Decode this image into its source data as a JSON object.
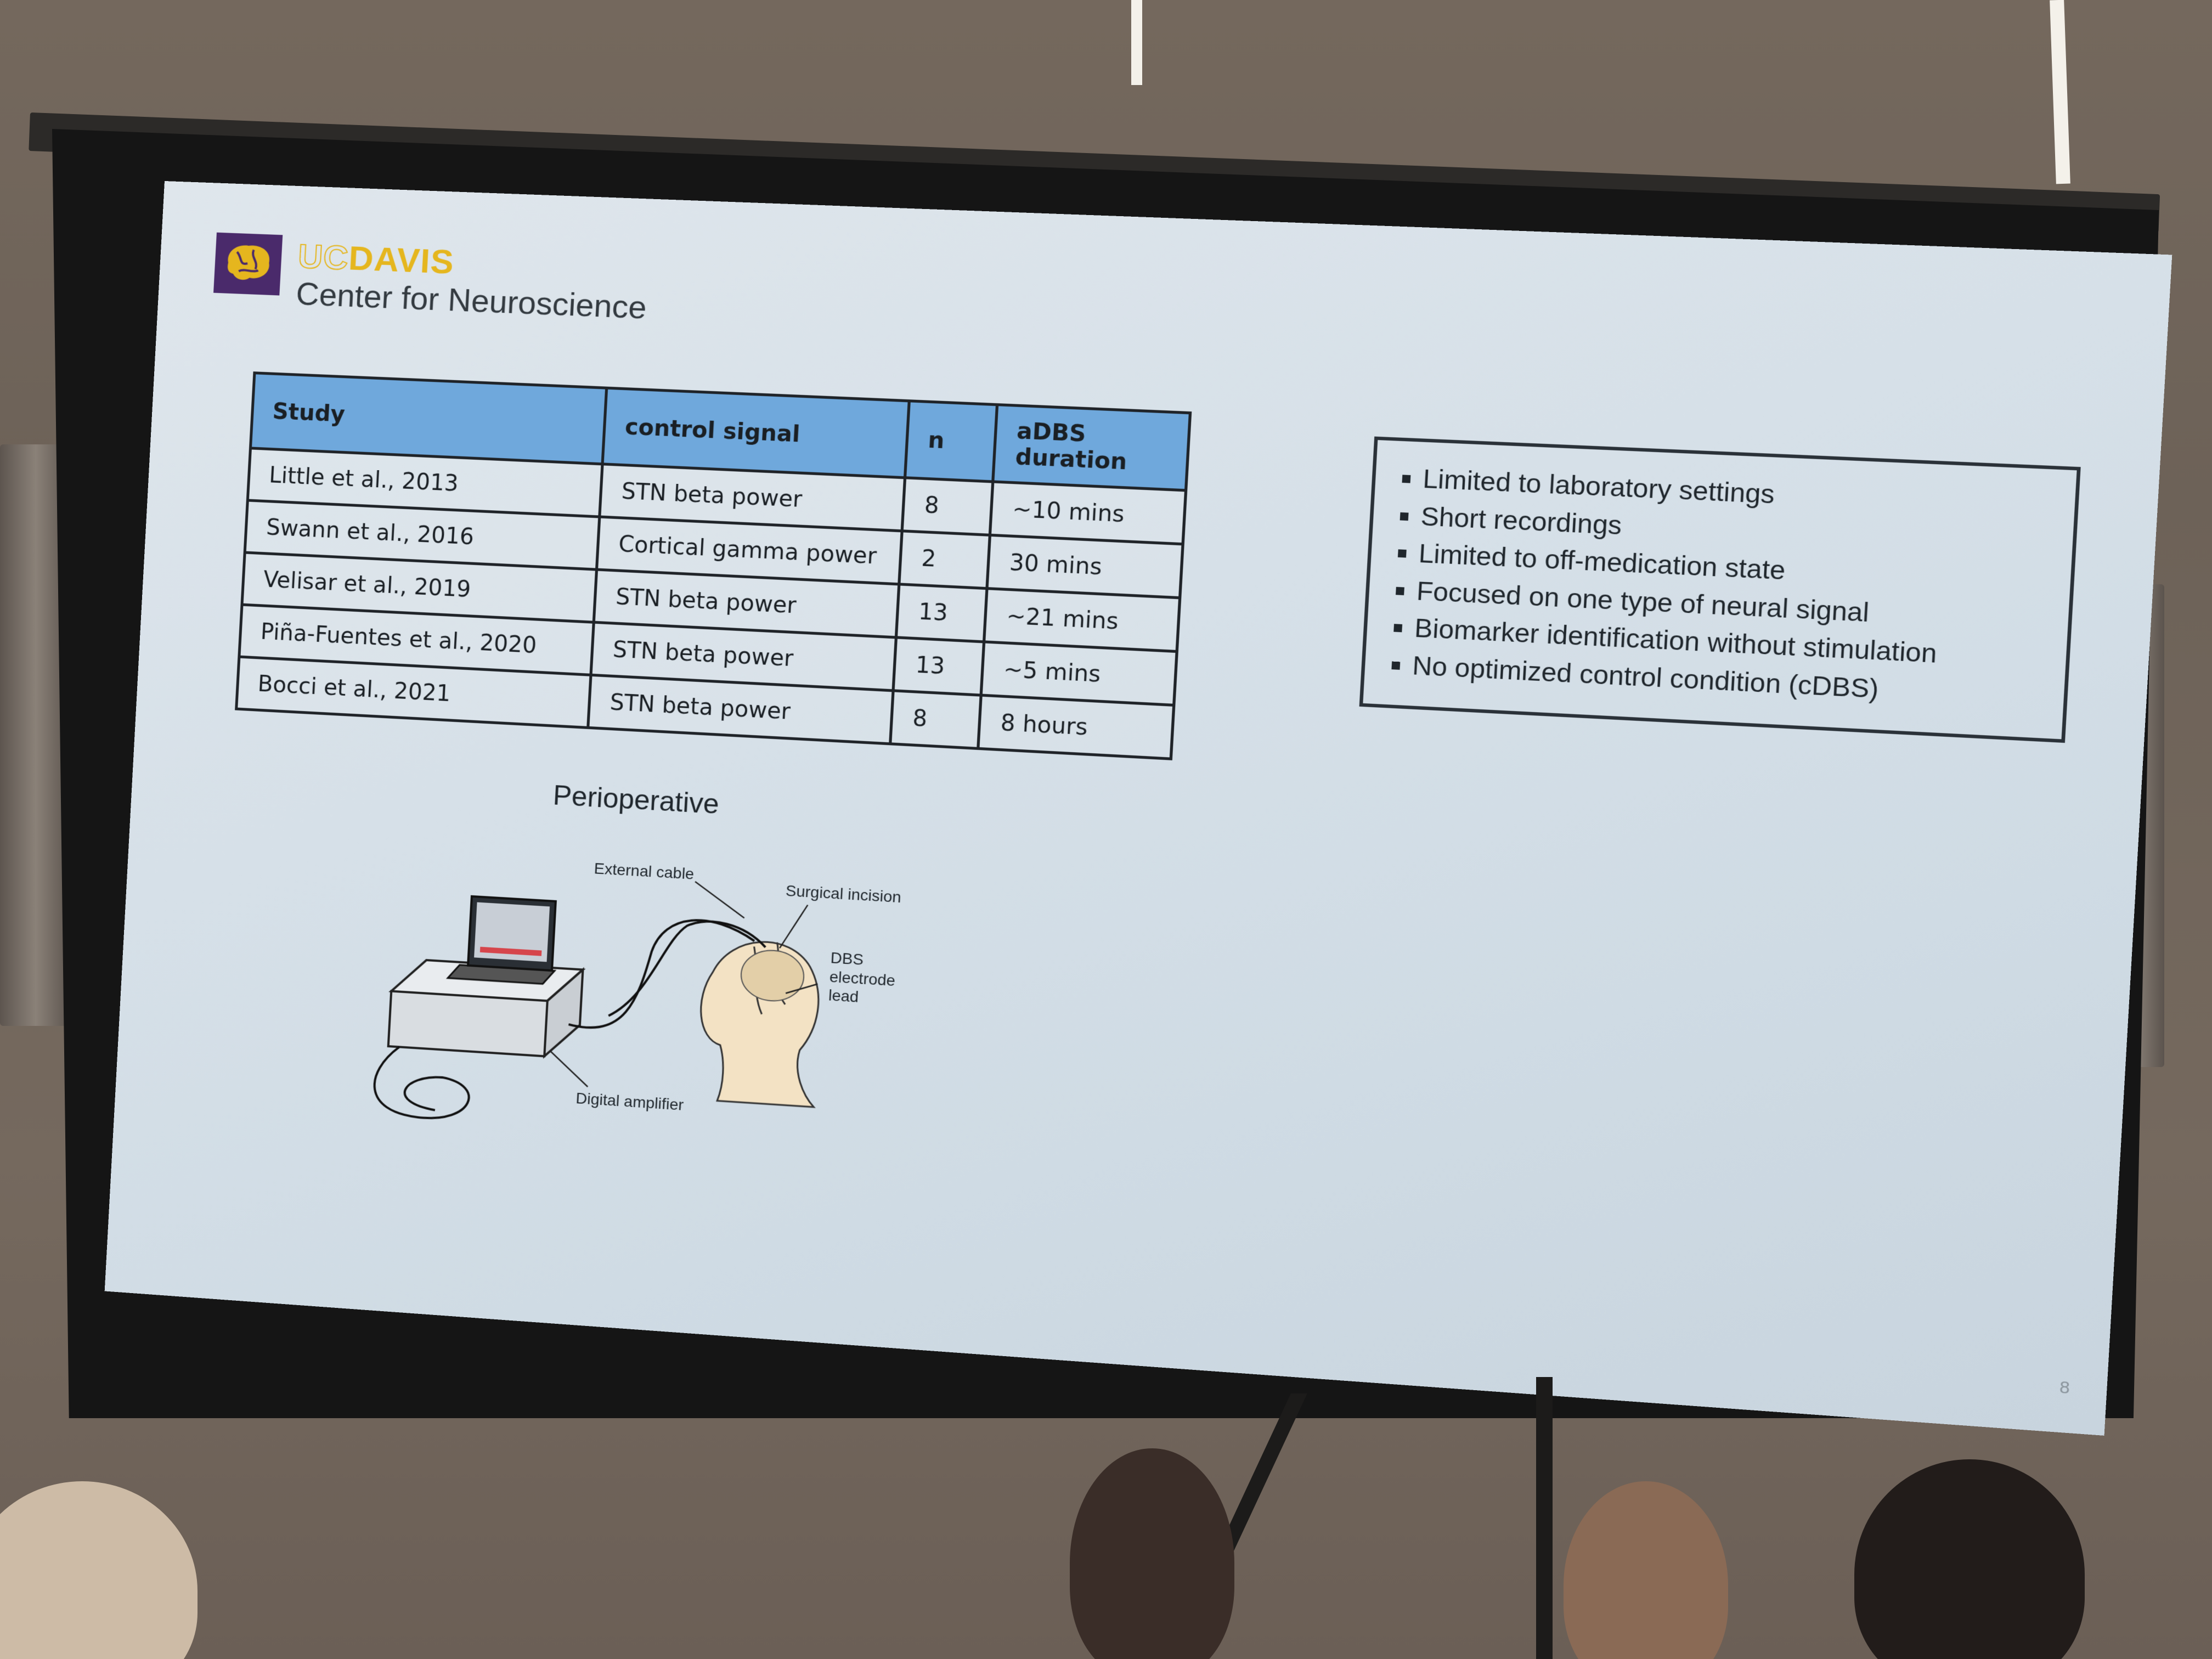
{
  "slide": {
    "logo": {
      "uc": "UC",
      "davis": "DAVIS",
      "center": "Center for Neuroscience"
    },
    "table": {
      "headers": [
        "Study",
        "control signal",
        "n",
        "aDBS duration"
      ],
      "rows": [
        [
          "Little et al., 2013",
          "STN beta power",
          "8",
          "~10 mins"
        ],
        [
          "Swann et al., 2016",
          "Cortical gamma power",
          "2",
          "30 mins"
        ],
        [
          "Velisar et al., 2019",
          "STN beta power",
          "13",
          "~21 mins"
        ],
        [
          "Piña-Fuentes et al., 2020",
          "STN beta power",
          "13",
          "~5 mins"
        ],
        [
          "Bocci et al., 2021",
          "STN beta power",
          "8",
          "8 hours"
        ]
      ]
    },
    "limitations": [
      "Limited to laboratory settings",
      "Short recordings",
      "Limited to off-medication state",
      "Focused on one type of neural signal",
      "Biomarker identification without stimulation",
      "No optimized control condition (cDBS)"
    ],
    "figure": {
      "title": "Perioperative",
      "labels": {
        "external_cable": "External cable",
        "surgical_incision": "Surgical incision",
        "dbs_lead_line1": "DBS",
        "dbs_lead_line2": "electrode",
        "dbs_lead_line3": "lead",
        "digital_amplifier": "Digital amplifier"
      }
    },
    "page_number": "8"
  }
}
